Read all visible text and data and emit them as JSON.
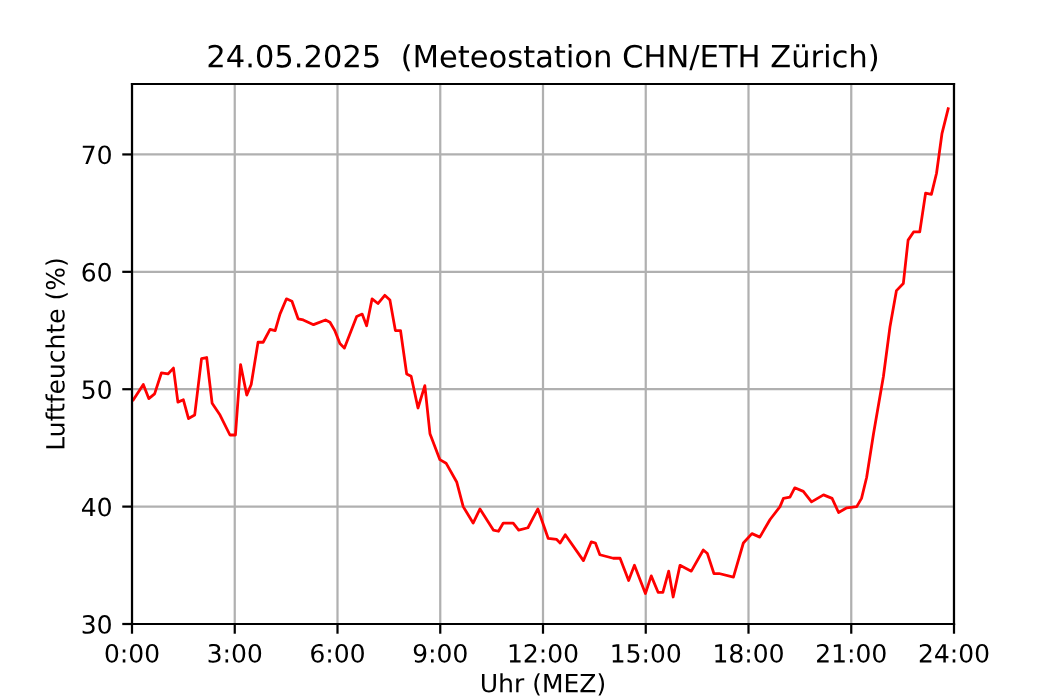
{
  "chart_data": {
    "type": "line",
    "title": "24.05.2025  (Meteostation CHN/ETH Zürich)",
    "xlabel": "Uhr (MEZ)",
    "ylabel": "Luftfeuchte (%)",
    "x": [
      0.04,
      0.33,
      0.49,
      0.66,
      0.86,
      1.05,
      1.21,
      1.34,
      1.5,
      1.65,
      1.83,
      2.03,
      2.18,
      2.34,
      2.57,
      2.86,
      3.02,
      3.17,
      3.35,
      3.48,
      3.68,
      3.83,
      4.03,
      4.18,
      4.32,
      4.51,
      4.67,
      4.85,
      5.0,
      5.3,
      5.65,
      5.78,
      5.92,
      6.07,
      6.2,
      6.56,
      6.72,
      6.85,
      7.01,
      7.18,
      7.38,
      7.53,
      7.69,
      7.84,
      8.02,
      8.15,
      8.35,
      8.55,
      8.7,
      8.99,
      9.17,
      9.48,
      9.67,
      9.96,
      10.16,
      10.55,
      10.7,
      10.84,
      11.13,
      11.29,
      11.56,
      11.85,
      12.15,
      12.4,
      12.5,
      12.65,
      13.18,
      13.41,
      13.53,
      13.66,
      14.05,
      14.25,
      14.5,
      14.67,
      14.99,
      15.16,
      15.36,
      15.5,
      15.67,
      15.8,
      16.0,
      16.33,
      16.68,
      16.8,
      16.99,
      17.14,
      17.56,
      17.85,
      18.1,
      18.33,
      18.63,
      18.92,
      19.02,
      19.21,
      19.35,
      19.6,
      19.84,
      20.19,
      20.44,
      20.63,
      20.87,
      21.16,
      21.3,
      21.45,
      21.65,
      21.94,
      22.13,
      22.32,
      22.52,
      22.66,
      22.82,
      23.0,
      23.17,
      23.34,
      23.49,
      23.65,
      23.83
    ],
    "series": [
      {
        "color": "#ff0000",
        "values": [
          49.1,
          50.4,
          49.2,
          49.6,
          51.4,
          51.3,
          51.8,
          48.9,
          49.1,
          47.5,
          47.8,
          52.6,
          52.7,
          48.8,
          47.8,
          46.1,
          46.1,
          52.1,
          49.5,
          50.4,
          54.0,
          54.0,
          55.1,
          55.0,
          56.4,
          57.7,
          57.5,
          56.0,
          55.9,
          55.5,
          55.9,
          55.7,
          55.0,
          53.9,
          53.5,
          56.2,
          56.4,
          55.4,
          57.7,
          57.3,
          58.0,
          57.6,
          55.0,
          55.0,
          51.3,
          51.1,
          48.4,
          50.3,
          46.2,
          44.0,
          43.7,
          42.1,
          40.0,
          38.6,
          39.8,
          38.0,
          37.9,
          38.6,
          38.6,
          38.0,
          38.2,
          39.8,
          37.3,
          37.2,
          36.9,
          37.6,
          35.4,
          37.0,
          36.9,
          35.9,
          35.6,
          35.6,
          33.7,
          35.0,
          32.6,
          34.1,
          32.7,
          32.7,
          34.5,
          32.3,
          35.0,
          34.5,
          36.3,
          36.0,
          34.3,
          34.3,
          34.0,
          36.9,
          37.7,
          37.4,
          38.9,
          40.0,
          40.7,
          40.8,
          41.6,
          41.3,
          40.4,
          41.0,
          40.7,
          39.5,
          39.9,
          40.0,
          40.7,
          42.5,
          46.2,
          51.1,
          55.3,
          58.4,
          59.0,
          62.7,
          63.4,
          63.4,
          66.7,
          66.6,
          68.4,
          71.8,
          73.9
        ]
      }
    ],
    "xlim": [
      0,
      24
    ],
    "xticks": [
      {
        "value": 0,
        "label": "0:00"
      },
      {
        "value": 3,
        "label": "3:00"
      },
      {
        "value": 6,
        "label": "6:00"
      },
      {
        "value": 9,
        "label": "9:00"
      },
      {
        "value": 12,
        "label": "12:00"
      },
      {
        "value": 15,
        "label": "15:00"
      },
      {
        "value": 18,
        "label": "18:00"
      },
      {
        "value": 21,
        "label": "21:00"
      },
      {
        "value": 24,
        "label": "24:00"
      }
    ],
    "ylim": [
      30,
      76
    ],
    "yticks": [
      30,
      40,
      50,
      60,
      70
    ],
    "grid": true
  }
}
